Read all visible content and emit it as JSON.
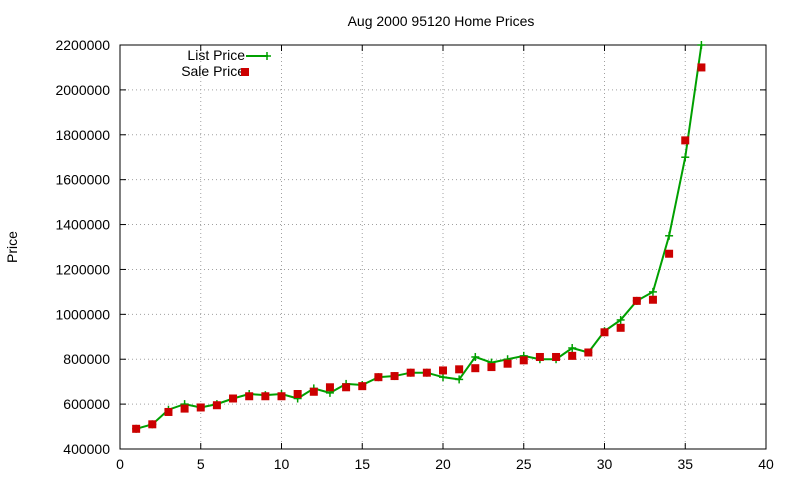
{
  "chart_data": {
    "type": "line",
    "title": "Aug 2000 95120 Home Prices",
    "xlabel": "",
    "ylabel": "Price",
    "xlim": [
      0,
      40
    ],
    "ylim": [
      400000,
      2200000
    ],
    "x_ticks": [
      "0",
      "5",
      "10",
      "15",
      "20",
      "25",
      "30",
      "35",
      "40"
    ],
    "y_ticks": [
      "400000",
      "600000",
      "800000",
      "1000000",
      "1200000",
      "1400000",
      "1600000",
      "1800000",
      "2000000",
      "2200000"
    ],
    "grid": true,
    "legend_position": "top-left",
    "series": [
      {
        "name": "List Price",
        "style": "line+points",
        "marker": "plus",
        "color": "#00a000",
        "x": [
          1,
          2,
          3,
          4,
          5,
          6,
          7,
          8,
          9,
          10,
          11,
          12,
          13,
          14,
          15,
          16,
          17,
          18,
          19,
          20,
          21,
          22,
          23,
          24,
          25,
          26,
          27,
          28,
          29,
          30,
          31,
          32,
          33,
          34,
          35,
          36
        ],
        "y": [
          490000,
          510000,
          575000,
          600000,
          585000,
          600000,
          625000,
          645000,
          640000,
          645000,
          625000,
          670000,
          650000,
          690000,
          685000,
          720000,
          725000,
          740000,
          740000,
          720000,
          710000,
          810000,
          785000,
          800000,
          815000,
          800000,
          800000,
          850000,
          830000,
          925000,
          975000,
          1060000,
          1100000,
          1350000,
          1700000,
          2200000
        ]
      },
      {
        "name": "Sale Price",
        "style": "points",
        "marker": "square",
        "color": "#cc0000",
        "x": [
          1,
          2,
          3,
          4,
          5,
          6,
          7,
          8,
          9,
          10,
          11,
          12,
          13,
          14,
          15,
          16,
          17,
          18,
          19,
          20,
          21,
          22,
          23,
          24,
          25,
          26,
          27,
          28,
          29,
          30,
          31,
          32,
          33,
          34,
          35,
          36
        ],
        "y": [
          490000,
          510000,
          565000,
          580000,
          585000,
          595000,
          625000,
          635000,
          635000,
          635000,
          645000,
          655000,
          675000,
          675000,
          680000,
          720000,
          725000,
          740000,
          740000,
          750000,
          755000,
          760000,
          765000,
          780000,
          795000,
          810000,
          810000,
          815000,
          830000,
          920000,
          940000,
          1060000,
          1065000,
          1270000,
          1775000,
          2100000
        ]
      }
    ]
  }
}
